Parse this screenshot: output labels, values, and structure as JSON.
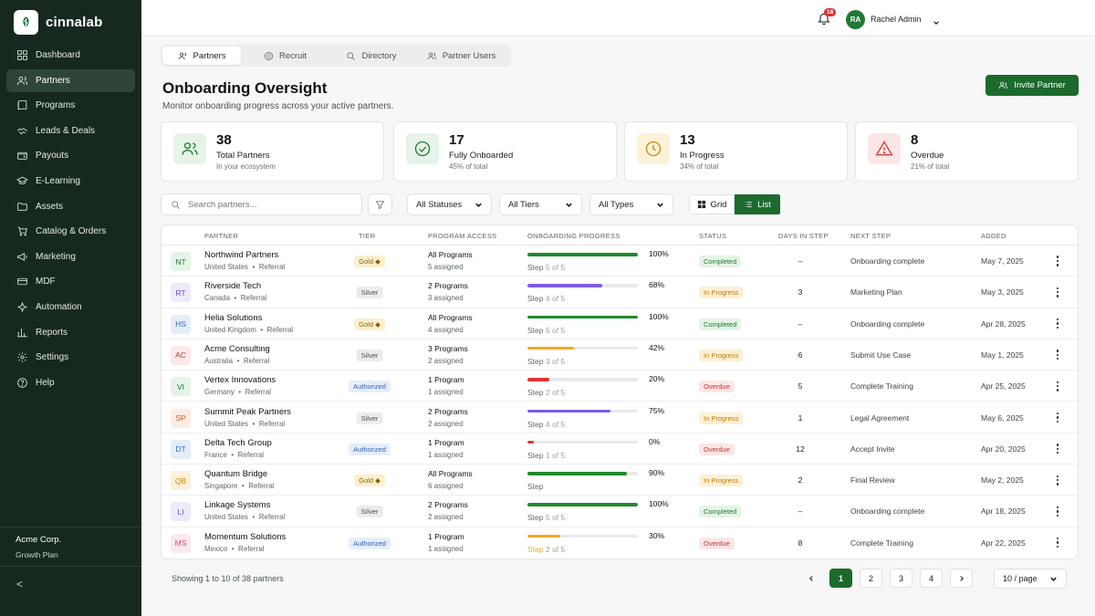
{
  "brand": {
    "name": "cinnalab"
  },
  "sidebar": {
    "items": [
      {
        "label": "Dashboard",
        "icon": "grid-icon"
      },
      {
        "label": "Partners",
        "icon": "users-icon",
        "active": true
      },
      {
        "label": "Programs",
        "icon": "book-icon"
      },
      {
        "label": "Leads & Deals",
        "icon": "handshake-icon"
      },
      {
        "label": "Payouts",
        "icon": "wallet-icon"
      },
      {
        "label": "E-Learning",
        "icon": "graduation-icon"
      },
      {
        "label": "Assets",
        "icon": "folder-icon"
      },
      {
        "label": "Catalog & Orders",
        "icon": "cart-icon"
      },
      {
        "label": "Marketing",
        "icon": "megaphone-icon"
      },
      {
        "label": "MDF",
        "icon": "card-icon"
      },
      {
        "label": "Automation",
        "icon": "sparkle-icon"
      },
      {
        "label": "Reports",
        "icon": "chart-icon"
      },
      {
        "label": "Settings",
        "icon": "gear-icon"
      },
      {
        "label": "Help",
        "icon": "help-icon"
      }
    ],
    "org_name": "Acme Corp.",
    "org_plan": "Growth Plan",
    "collapse_glyph": "<"
  },
  "header": {
    "notifications_count": "18",
    "user_initials": "RA",
    "user_name": "Rachel Admin"
  },
  "tabs": [
    {
      "label": "Partners",
      "active": true
    },
    {
      "label": "Recruit"
    },
    {
      "label": "Directory"
    },
    {
      "label": "Partner Users"
    }
  ],
  "page": {
    "title": "Onboarding Oversight",
    "subtitle": "Monitor onboarding progress across your active partners.",
    "invite_label": "Invite Partner"
  },
  "stats": [
    {
      "value": "38",
      "label": "Total Partners",
      "note": "In your ecosystem",
      "icon": "users-icon",
      "bg": "#e6f3e8",
      "fg": "#1f7a36"
    },
    {
      "value": "17",
      "label": "Fully Onboarded",
      "note": "45% of total",
      "icon": "check-circle-icon",
      "bg": "#e6f3e8",
      "fg": "#1f7a36"
    },
    {
      "value": "13",
      "label": "In Progress",
      "note": "34% of total",
      "icon": "clock-icon",
      "bg": "#fdf1d8",
      "fg": "#c98a12"
    },
    {
      "value": "8",
      "label": "Overdue",
      "note": "21% of total",
      "icon": "warning-icon",
      "bg": "#fde6e6",
      "fg": "#d33a3a"
    }
  ],
  "filters": {
    "search_placeholder": "Search partners...",
    "status": "All Statuses",
    "tier": "All Tiers",
    "type": "All Types",
    "view_grid": "Grid",
    "view_list": "List"
  },
  "table": {
    "headers": {
      "partner": "PARTNER",
      "tier": "TIER",
      "access": "PROGRAM ACCESS",
      "progress": "ONBOARDING PROGRESS",
      "status": "STATUS",
      "days": "DAYS IN STEP",
      "next": "NEXT STEP",
      "added": "ADDED"
    },
    "rows": [
      {
        "initials": "NT",
        "name": "Northwind Partners",
        "country": "United States",
        "type": "Referral",
        "tier": "Gold",
        "access": "All Programs",
        "assigned": "5 assigned",
        "pct": 100,
        "pct_label": "100%",
        "step": "Step",
        "step_of": "5 of 5",
        "status": "Completed",
        "days": "–",
        "next": "Onboarding complete",
        "added": "May 7, 2025"
      },
      {
        "initials": "RT",
        "name": "Riverside Tech",
        "country": "Canada",
        "type": "Referral",
        "tier": "Silver",
        "access": "2 Programs",
        "assigned": "3 assigned",
        "pct": 68,
        "pct_label": "68%",
        "step": "Step",
        "step_of": "4 of 5",
        "status": "In Progress",
        "days": "3",
        "next": "Marketing Plan",
        "added": "May 3, 2025"
      },
      {
        "initials": "HS",
        "name": "Helia Solutions",
        "country": "United Kingdom",
        "type": "Referral",
        "tier": "Gold",
        "access": "All Programs",
        "assigned": "4 assigned",
        "pct": 100,
        "pct_label": "100%",
        "step": "Step",
        "step_of": "5 of 5",
        "status": "Completed",
        "days": "–",
        "next": "Onboarding complete",
        "added": "Apr 28, 2025"
      },
      {
        "initials": "AC",
        "name": "Acme Consulting",
        "country": "Australia",
        "type": "Referral",
        "tier": "Silver",
        "access": "3 Programs",
        "assigned": "2 assigned",
        "pct": 42,
        "pct_label": "42%",
        "step": "Step",
        "step_of": "3 of 5",
        "status": "In Progress",
        "days": "6",
        "next": "Submit Use Case",
        "added": "May 1, 2025"
      },
      {
        "initials": "VI",
        "name": "Vertex Innovations",
        "country": "Germany",
        "type": "Referral",
        "tier": "Authorized",
        "access": "1 Program",
        "assigned": "1 assigned",
        "pct": 20,
        "pct_label": "20%",
        "step": "Step",
        "step_of": "2 of 5",
        "status": "Overdue",
        "days": "5",
        "next": "Complete Training",
        "added": "Apr 25, 2025"
      },
      {
        "initials": "SP",
        "name": "Summit Peak Partners",
        "country": "United States",
        "type": "Referral",
        "tier": "Silver",
        "access": "2 Programs",
        "assigned": "2 assigned",
        "pct": 75,
        "pct_label": "75%",
        "step": "Step",
        "step_of": "4 of 5",
        "status": "In Progress",
        "days": "1",
        "next": "Legal Agreement",
        "added": "May 6, 2025"
      },
      {
        "initials": "DT",
        "name": "Delta Tech Group",
        "country": "France",
        "type": "Referral",
        "tier": "Authorized",
        "access": "1 Program",
        "assigned": "1 assigned",
        "pct": 0,
        "pct_label": "0%",
        "step": "Step",
        "step_of": "1 of 5",
        "status": "Overdue",
        "days": "12",
        "next": "Accept Invite",
        "added": "Apr 20, 2025"
      },
      {
        "initials": "QB",
        "name": "Quantum Bridge",
        "country": "Singapore",
        "type": "Referral",
        "tier": "Gold",
        "access": "All Programs",
        "assigned": "6 assigned",
        "pct": 90,
        "pct_label": "90%",
        "step": "Step",
        "step_of": "",
        "status": "In Progress",
        "days": "2",
        "next": "Final Review",
        "added": "May 2, 2025"
      },
      {
        "initials": "LI",
        "name": "Linkage Systems",
        "country": "United States",
        "type": "Referral",
        "tier": "Silver",
        "access": "2 Programs",
        "assigned": "2 assigned",
        "pct": 100,
        "pct_label": "100%",
        "step": "Step",
        "step_of": "5 of 5",
        "status": "Completed",
        "days": "–",
        "next": "Onboarding complete",
        "added": "Apr 18, 2025"
      },
      {
        "initials": "MS",
        "name": "Momentum Solutions",
        "country": "Mexico",
        "type": "Referral",
        "tier": "Authorized",
        "access": "1 Program",
        "assigned": "1 assigned",
        "pct": 30,
        "pct_label": "30%",
        "step": "Step",
        "step_of": "2 of 5",
        "status": "Overdue",
        "days": "8",
        "next": "Complete Training",
        "added": "Apr 22, 2025"
      }
    ]
  },
  "footer": {
    "showing": "Showing 1 to 10 of 38 partners",
    "pages": [
      "1",
      "2",
      "3",
      "4"
    ],
    "current_page": "1",
    "per_page": "10 / page"
  },
  "colors": {
    "brand": "#1c6a2e",
    "sidebar": "#17291f",
    "complete": "#1e8a2e",
    "progress": "#7b5be0",
    "partial": "#f5a623",
    "overdue": "#e03131"
  }
}
